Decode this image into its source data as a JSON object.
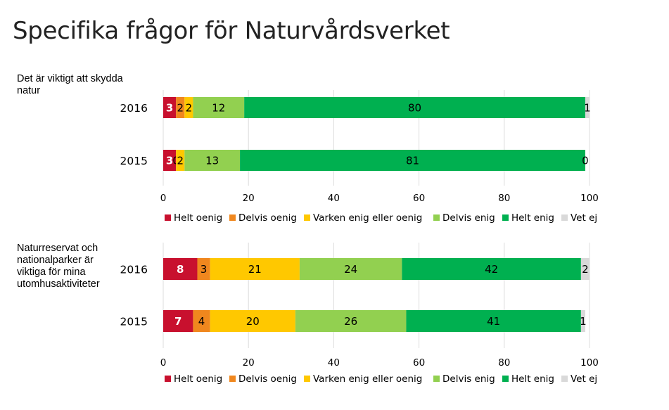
{
  "title": "Specifika frågor för Naturvårdsverket",
  "chart_data": [
    {
      "type": "bar",
      "orientation": "horizontal",
      "stacked": true,
      "question": "Det är viktigt att skydda natur",
      "categories": [
        "2016",
        "2015"
      ],
      "series": [
        {
          "name": "Helt oenig",
          "color": "#C8102E",
          "values": [
            3,
            3
          ]
        },
        {
          "name": "Delvis oenig",
          "color": "#F0871E",
          "values": [
            2,
            0
          ]
        },
        {
          "name": "Varken enig eller oenig",
          "color": "#FFC800",
          "values": [
            2,
            2
          ]
        },
        {
          "name": "Delvis enig",
          "color": "#92D050",
          "values": [
            12,
            13
          ]
        },
        {
          "name": "Helt enig",
          "color": "#00B050",
          "values": [
            80,
            81
          ]
        },
        {
          "name": "Vet ej",
          "color": "#D9D9D9",
          "values": [
            1,
            0
          ]
        }
      ],
      "xlim": [
        0,
        100
      ],
      "xticks": [
        0,
        20,
        40,
        60,
        80,
        100
      ],
      "grid": true,
      "legend": "bottom"
    },
    {
      "type": "bar",
      "orientation": "horizontal",
      "stacked": true,
      "question": "Naturreservat och nationalparker är viktiga för mina utomhusaktiviteter",
      "categories": [
        "2016",
        "2015"
      ],
      "series": [
        {
          "name": "Helt oenig",
          "color": "#C8102E",
          "values": [
            8,
            7
          ]
        },
        {
          "name": "Delvis oenig",
          "color": "#F0871E",
          "values": [
            3,
            4
          ]
        },
        {
          "name": "Varken enig eller oenig",
          "color": "#FFC800",
          "values": [
            21,
            20
          ]
        },
        {
          "name": "Delvis enig",
          "color": "#92D050",
          "values": [
            24,
            26
          ]
        },
        {
          "name": "Helt enig",
          "color": "#00B050",
          "values": [
            42,
            41
          ]
        },
        {
          "name": "Vet ej",
          "color": "#D9D9D9",
          "values": [
            2,
            1
          ]
        }
      ],
      "xlim": [
        0,
        100
      ],
      "xticks": [
        0,
        20,
        40,
        60,
        80,
        100
      ],
      "grid": true,
      "legend": "bottom"
    }
  ]
}
